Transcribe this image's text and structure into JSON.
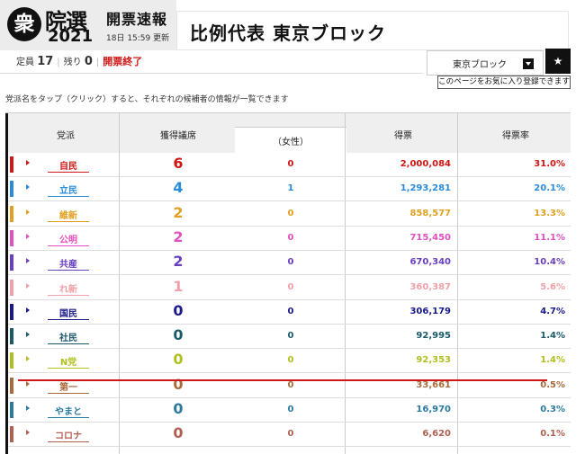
{
  "header": {
    "logo_char": "衆",
    "logo_title": "院選",
    "logo_year": "2021",
    "live_title": "開票速報",
    "updated": "18日 15:59 更新",
    "page_title": "比例代表 東京ブロック"
  },
  "stats": {
    "capacity_label": "定員",
    "capacity": "17",
    "remaining_label": "残り",
    "remaining": "0",
    "status": "開票終了"
  },
  "block_select": {
    "value": "東京ブロック"
  },
  "favorite": {
    "icon": "star-icon",
    "tooltip": "このページをお気に入り登録できます"
  },
  "instruction": "党派名をタップ（クリック）すると、それぞれの候補者の情報が一覧できます",
  "table": {
    "headers": {
      "party": "党派",
      "seats": "獲得議席",
      "women": "（女性）",
      "votes": "得票",
      "rate": "得票率"
    },
    "rows": [
      {
        "party": "自民",
        "seats": "6",
        "women": "0",
        "votes": "2,000,084",
        "rate": "31.0%",
        "color": "#d01616"
      },
      {
        "party": "立民",
        "seats": "4",
        "women": "1",
        "votes": "1,293,281",
        "rate": "20.1%",
        "color": "#2a8bd8"
      },
      {
        "party": "維新",
        "seats": "2",
        "women": "0",
        "votes": "858,577",
        "rate": "13.3%",
        "color": "#e0a020"
      },
      {
        "party": "公明",
        "seats": "2",
        "women": "0",
        "votes": "715,450",
        "rate": "11.1%",
        "color": "#e050c0"
      },
      {
        "party": "共産",
        "seats": "2",
        "women": "0",
        "votes": "670,340",
        "rate": "10.4%",
        "color": "#6a3fc0"
      },
      {
        "party": "れ新",
        "seats": "1",
        "women": "0",
        "votes": "360,387",
        "rate": "5.6%",
        "color": "#f0a0a8"
      },
      {
        "party": "国民",
        "seats": "0",
        "women": "0",
        "votes": "306,179",
        "rate": "4.7%",
        "color": "#1a1a8a"
      },
      {
        "party": "社民",
        "seats": "0",
        "women": "0",
        "votes": "92,995",
        "rate": "1.4%",
        "color": "#1a5a6a"
      },
      {
        "party": "N党",
        "seats": "0",
        "women": "0",
        "votes": "92,353",
        "rate": "1.4%",
        "color": "#b0c020"
      },
      {
        "party": "第一",
        "seats": "0",
        "women": "0",
        "votes": "33,661",
        "rate": "0.5%",
        "color": "#a86a3a"
      },
      {
        "party": "やまと",
        "seats": "0",
        "women": "0",
        "votes": "16,970",
        "rate": "0.3%",
        "color": "#2a7aa0"
      },
      {
        "party": "コロナ",
        "seats": "0",
        "women": "0",
        "votes": "6,620",
        "rate": "0.1%",
        "color": "#b06050"
      }
    ]
  }
}
